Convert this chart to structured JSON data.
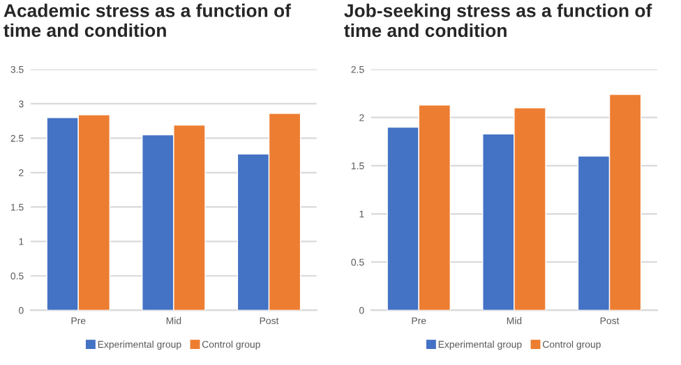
{
  "chart_data": [
    {
      "type": "bar",
      "title": "Academic stress as a function of time and condition",
      "categories": [
        "Pre",
        "Mid",
        "Post"
      ],
      "series": [
        {
          "name": "Experimental group",
          "color": "#4472c4",
          "values": [
            2.8,
            2.55,
            2.27
          ]
        },
        {
          "name": "Control group",
          "color": "#ed7d31",
          "values": [
            2.84,
            2.69,
            2.86
          ]
        }
      ],
      "ylim": [
        0,
        3.5
      ],
      "yticks": [
        0,
        0.5,
        1,
        1.5,
        2,
        2.5,
        3,
        3.5
      ],
      "grid": "y",
      "legend": "bottom"
    },
    {
      "type": "bar",
      "title": "Job-seeking stress as a function of time and condition",
      "categories": [
        "Pre",
        "Mid",
        "Post"
      ],
      "series": [
        {
          "name": "Experimental group",
          "color": "#4472c4",
          "values": [
            1.9,
            1.83,
            1.6
          ]
        },
        {
          "name": "Control group",
          "color": "#ed7d31",
          "values": [
            2.13,
            2.1,
            2.24
          ]
        }
      ],
      "ylim": [
        0,
        2.5
      ],
      "yticks": [
        0,
        0.5,
        1,
        1.5,
        2,
        2.5
      ],
      "grid": "y",
      "legend": "bottom"
    }
  ]
}
